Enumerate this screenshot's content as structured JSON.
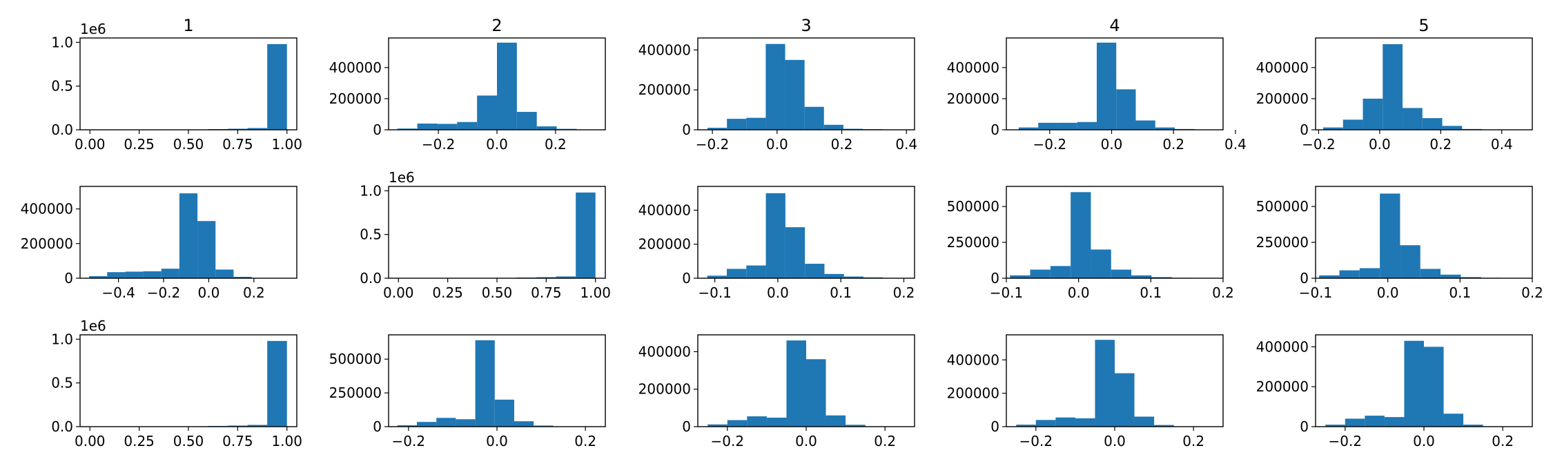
{
  "figure": {
    "bar_color": "#1f77b4",
    "column_titles": [
      "1",
      "2",
      "3",
      "4",
      "5"
    ]
  },
  "chart_data": [
    {
      "type": "bar",
      "xlim": [
        -0.05,
        1.05
      ],
      "ylim": [
        0,
        1.05
      ],
      "xticks": [
        0,
        0.25,
        0.5,
        0.75,
        1
      ],
      "xtick_labels": [
        "0.00",
        "0.25",
        "0.50",
        "0.75",
        "1.00"
      ],
      "yticks": [
        0,
        0.5,
        1
      ],
      "ytick_labels": [
        "0.0",
        "0.5",
        "1.0"
      ],
      "scale_label": "1e6",
      "bins": [
        0,
        0.1,
        0.2,
        0.3,
        0.4,
        0.5,
        0.6,
        0.7,
        0.8,
        0.9,
        1.0
      ],
      "counts": [
        0.002,
        0.001,
        0.001,
        0.001,
        0.002,
        0.003,
        0.008,
        0.012,
        0.02,
        0.98
      ]
    },
    {
      "type": "bar",
      "xlim": [
        -0.37,
        0.37
      ],
      "ylim": [
        0,
        590000
      ],
      "xticks": [
        -0.2,
        0,
        0.2
      ],
      "xtick_labels": [
        "−0.2",
        "0.0",
        "0.2"
      ],
      "yticks": [
        0,
        200000,
        400000
      ],
      "ytick_labels": [
        "0",
        "200000",
        "400000"
      ],
      "bins": [
        -0.34,
        -0.272,
        -0.204,
        -0.136,
        -0.068,
        0,
        0.068,
        0.136,
        0.204,
        0.272,
        0.34
      ],
      "counts": [
        8000,
        40000,
        38000,
        50000,
        220000,
        560000,
        115000,
        22000,
        6000,
        2000
      ]
    },
    {
      "type": "bar",
      "xlim": [
        -0.245,
        0.425
      ],
      "ylim": [
        0,
        460000
      ],
      "xticks": [
        -0.2,
        0,
        0.2,
        0.4
      ],
      "xtick_labels": [
        "−0.2",
        "0.0",
        "0.2",
        "0.4"
      ],
      "yticks": [
        0,
        200000,
        400000
      ],
      "ytick_labels": [
        "0",
        "200000",
        "400000"
      ],
      "bins": [
        -0.215,
        -0.155,
        -0.095,
        -0.035,
        0.025,
        0.085,
        0.145,
        0.205,
        0.265,
        0.325,
        0.385
      ],
      "counts": [
        10000,
        55000,
        60000,
        430000,
        350000,
        115000,
        25000,
        5000,
        3000,
        1000
      ]
    },
    {
      "type": "bar",
      "xlim": [
        -0.34,
        0.36
      ],
      "ylim": [
        0,
        590000
      ],
      "xticks": [
        -0.2,
        0,
        0.2,
        0.4
      ],
      "xtick_labels": [
        "−0.2",
        "0.0",
        "0.2",
        "0.4"
      ],
      "yticks": [
        0,
        200000,
        400000
      ],
      "ytick_labels": [
        "0",
        "200000",
        "400000"
      ],
      "bins": [
        -0.3,
        -0.237,
        -0.174,
        -0.111,
        -0.048,
        0.015,
        0.078,
        0.141,
        0.204,
        0.267,
        0.33
      ],
      "counts": [
        15000,
        45000,
        45000,
        50000,
        560000,
        260000,
        60000,
        15000,
        5000,
        1000
      ]
    },
    {
      "type": "bar",
      "xlim": [
        -0.21,
        0.5
      ],
      "ylim": [
        0,
        590000
      ],
      "xticks": [
        -0.2,
        0,
        0.2,
        0.4
      ],
      "xtick_labels": [
        "−0.2",
        "0.0",
        "0.2",
        "0.4"
      ],
      "yticks": [
        0,
        200000,
        400000
      ],
      "ytick_labels": [
        "0",
        "200000",
        "400000"
      ],
      "bins": [
        -0.185,
        -0.12,
        -0.055,
        0.01,
        0.075,
        0.14,
        0.205,
        0.27,
        0.335,
        0.4,
        0.465
      ],
      "counts": [
        15000,
        65000,
        200000,
        550000,
        140000,
        75000,
        25000,
        5000,
        2000,
        1000
      ]
    },
    {
      "type": "bar",
      "xlim": [
        -0.57,
        0.39
      ],
      "ylim": [
        0,
        530000
      ],
      "xticks": [
        -0.4,
        -0.2,
        0,
        0.2
      ],
      "xtick_labels": [
        "−0.4",
        "−0.2",
        "0.0",
        "0.2"
      ],
      "yticks": [
        0,
        200000,
        400000
      ],
      "ytick_labels": [
        "0",
        "200000",
        "400000"
      ],
      "bins": [
        -0.53,
        -0.45,
        -0.37,
        -0.29,
        -0.21,
        -0.13,
        -0.05,
        0.03,
        0.11,
        0.19,
        0.27
      ],
      "counts": [
        12000,
        35000,
        38000,
        40000,
        55000,
        490000,
        330000,
        50000,
        8000,
        2000
      ]
    },
    {
      "type": "bar",
      "xlim": [
        -0.05,
        1.05
      ],
      "ylim": [
        0,
        1.05
      ],
      "xticks": [
        0,
        0.25,
        0.5,
        0.75,
        1
      ],
      "xtick_labels": [
        "0.00",
        "0.25",
        "0.50",
        "0.75",
        "1.00"
      ],
      "yticks": [
        0,
        0.5,
        1
      ],
      "ytick_labels": [
        "0.0",
        "0.5",
        "1.0"
      ],
      "scale_label": "1e6",
      "bins": [
        0,
        0.1,
        0.2,
        0.3,
        0.4,
        0.5,
        0.6,
        0.7,
        0.8,
        0.9,
        1.0
      ],
      "counts": [
        0.002,
        0.001,
        0.001,
        0.001,
        0.002,
        0.003,
        0.008,
        0.012,
        0.02,
        0.98
      ]
    },
    {
      "type": "bar",
      "xlim": [
        -0.127,
        0.217
      ],
      "ylim": [
        0,
        540000
      ],
      "xticks": [
        -0.1,
        0,
        0.1,
        0.2
      ],
      "xtick_labels": [
        "−0.1",
        "0.0",
        "0.1",
        "0.2"
      ],
      "yticks": [
        0,
        200000,
        400000
      ],
      "ytick_labels": [
        "0",
        "200000",
        "400000"
      ],
      "bins": [
        -0.112,
        -0.081,
        -0.05,
        -0.019,
        0.012,
        0.043,
        0.074,
        0.105,
        0.136,
        0.167,
        0.198
      ],
      "counts": [
        15000,
        55000,
        75000,
        500000,
        300000,
        85000,
        25000,
        10000,
        5000,
        2000
      ]
    },
    {
      "type": "bar",
      "xlim": [
        -0.1,
        0.2
      ],
      "ylim": [
        0,
        640000
      ],
      "xticks": [
        -0.1,
        0,
        0.1,
        0.2
      ],
      "xtick_labels": [
        "−0.1",
        "0.0",
        "0.1",
        "0.2"
      ],
      "yticks": [
        0,
        250000,
        500000
      ],
      "ytick_labels": [
        "0",
        "250000",
        "500000"
      ],
      "bins": [
        -0.095,
        -0.067,
        -0.039,
        -0.011,
        0.017,
        0.045,
        0.073,
        0.101,
        0.129,
        0.157,
        0.185
      ],
      "counts": [
        20000,
        60000,
        85000,
        600000,
        200000,
        60000,
        20000,
        8000,
        3000,
        1000
      ]
    },
    {
      "type": "bar",
      "xlim": [
        -0.1,
        0.2
      ],
      "ylim": [
        0,
        640000
      ],
      "xticks": [
        -0.1,
        0,
        0.1,
        0.2
      ],
      "xtick_labels": [
        "−0.1",
        "0.0",
        "0.1",
        "0.2"
      ],
      "yticks": [
        0,
        250000,
        500000
      ],
      "ytick_labels": [
        "0",
        "250000",
        "500000"
      ],
      "bins": [
        -0.095,
        -0.067,
        -0.039,
        -0.011,
        0.017,
        0.045,
        0.073,
        0.101,
        0.129,
        0.157,
        0.185
      ],
      "counts": [
        20000,
        55000,
        70000,
        590000,
        230000,
        65000,
        25000,
        8000,
        3000,
        1000
      ]
    },
    {
      "type": "bar",
      "xlim": [
        -0.05,
        1.05
      ],
      "ylim": [
        0,
        1.05
      ],
      "xticks": [
        0,
        0.25,
        0.5,
        0.75,
        1
      ],
      "xtick_labels": [
        "0.00",
        "0.25",
        "0.50",
        "0.75",
        "1.00"
      ],
      "yticks": [
        0,
        0.5,
        1
      ],
      "ytick_labels": [
        "0.0",
        "0.5",
        "1.0"
      ],
      "scale_label": "1e6",
      "bins": [
        0,
        0.1,
        0.2,
        0.3,
        0.4,
        0.5,
        0.6,
        0.7,
        0.8,
        0.9,
        1.0
      ],
      "counts": [
        0.002,
        0.001,
        0.001,
        0.001,
        0.002,
        0.003,
        0.008,
        0.012,
        0.02,
        0.98
      ]
    },
    {
      "type": "bar",
      "xlim": [
        -0.245,
        0.245
      ],
      "ylim": [
        0,
        680000
      ],
      "xticks": [
        -0.2,
        0,
        0.2
      ],
      "xtick_labels": [
        "−0.2",
        "0.0",
        "0.2"
      ],
      "yticks": [
        0,
        250000,
        500000
      ],
      "ytick_labels": [
        "0",
        "250000",
        "500000"
      ],
      "bins": [
        -0.225,
        -0.181,
        -0.137,
        -0.093,
        -0.049,
        -0.005,
        0.039,
        0.083,
        0.127,
        0.171,
        0.215
      ],
      "counts": [
        10000,
        35000,
        65000,
        55000,
        640000,
        200000,
        40000,
        8000,
        2000,
        1000
      ]
    },
    {
      "type": "bar",
      "xlim": [
        -0.275,
        0.275
      ],
      "ylim": [
        0,
        490000
      ],
      "xticks": [
        -0.2,
        0,
        0.2
      ],
      "xtick_labels": [
        "−0.2",
        "0.0",
        "0.2"
      ],
      "yticks": [
        0,
        200000,
        400000
      ],
      "ytick_labels": [
        "0",
        "200000",
        "400000"
      ],
      "bins": [
        -0.25,
        -0.2,
        -0.15,
        -0.1,
        -0.05,
        0,
        0.05,
        0.1,
        0.15,
        0.2,
        0.25
      ],
      "counts": [
        12000,
        35000,
        55000,
        48000,
        460000,
        360000,
        60000,
        10000,
        2000,
        1000
      ]
    },
    {
      "type": "bar",
      "xlim": [
        -0.275,
        0.275
      ],
      "ylim": [
        0,
        550000
      ],
      "xticks": [
        -0.2,
        0,
        0.2
      ],
      "xtick_labels": [
        "−0.2",
        "0.0",
        "0.2"
      ],
      "yticks": [
        0,
        200000,
        400000
      ],
      "ytick_labels": [
        "0",
        "200000",
        "400000"
      ],
      "bins": [
        -0.25,
        -0.2,
        -0.15,
        -0.1,
        -0.05,
        0,
        0.05,
        0.1,
        0.15,
        0.2,
        0.25
      ],
      "counts": [
        12000,
        40000,
        55000,
        50000,
        520000,
        320000,
        60000,
        10000,
        2000,
        1000
      ]
    },
    {
      "type": "bar",
      "xlim": [
        -0.275,
        0.275
      ],
      "ylim": [
        0,
        460000
      ],
      "xticks": [
        -0.2,
        0,
        0.2
      ],
      "xtick_labels": [
        "−0.2",
        "0.0",
        "0.2"
      ],
      "yticks": [
        0,
        200000,
        400000
      ],
      "ytick_labels": [
        "0",
        "200000",
        "400000"
      ],
      "bins": [
        -0.25,
        -0.2,
        -0.15,
        -0.1,
        -0.05,
        0,
        0.05,
        0.1,
        0.15,
        0.2,
        0.25
      ],
      "counts": [
        10000,
        40000,
        55000,
        48000,
        430000,
        400000,
        65000,
        10000,
        2000,
        1000
      ]
    }
  ]
}
